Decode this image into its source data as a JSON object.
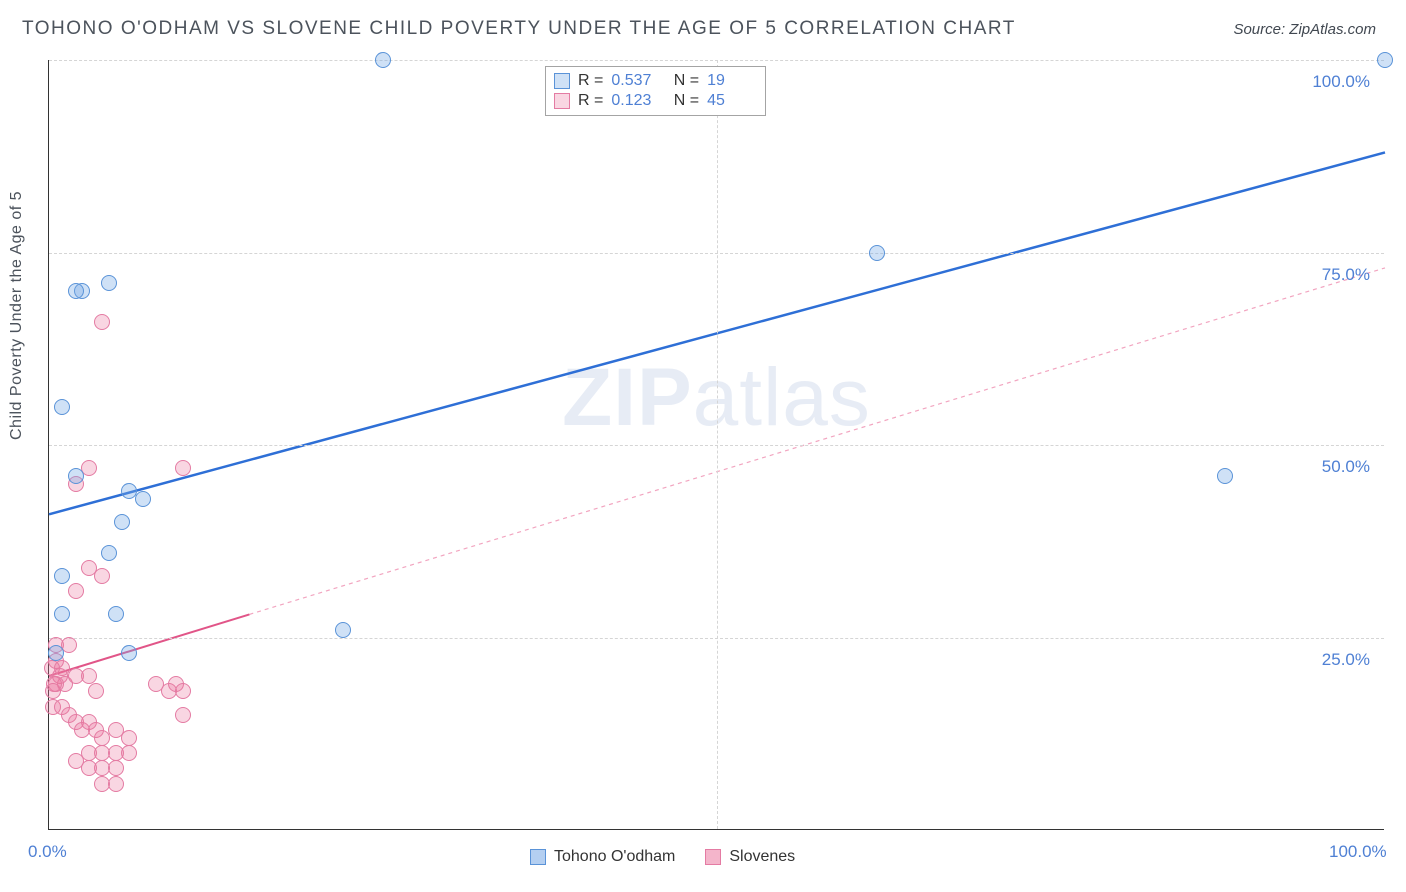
{
  "title": "TOHONO O'ODHAM VS SLOVENE CHILD POVERTY UNDER THE AGE OF 5 CORRELATION CHART",
  "source_label": "Source: ZipAtlas.com",
  "y_axis_title": "Child Poverty Under the Age of 5",
  "watermark_bold": "ZIP",
  "watermark_rest": "atlas",
  "chart": {
    "type": "scatter",
    "xlim": [
      0,
      100
    ],
    "ylim": [
      0,
      100
    ],
    "x_ticks": [
      0,
      50,
      100
    ],
    "y_ticks": [
      25,
      50,
      75,
      100
    ],
    "x_tick_labels": [
      "0.0%",
      "",
      "100.0%"
    ],
    "y_tick_labels": [
      "25.0%",
      "50.0%",
      "75.0%",
      "100.0%"
    ],
    "grid_color": "#d5d5d5",
    "background": "#ffffff",
    "point_radius": 8,
    "series": [
      {
        "name": "Tohono O'odham",
        "fill": "rgba(118,168,229,0.35)",
        "stroke": "#5a93d8",
        "r_value": "0.537",
        "n_value": "19",
        "trend": {
          "color": "#2e6fd6",
          "width": 2.5,
          "dash": "none",
          "x1": 0,
          "y1": 41,
          "x2": 100,
          "y2": 88
        },
        "points": [
          [
            25,
            100
          ],
          [
            100,
            100
          ],
          [
            4.5,
            71
          ],
          [
            2.5,
            70
          ],
          [
            2,
            70
          ],
          [
            62,
            75
          ],
          [
            1,
            55
          ],
          [
            2,
            46
          ],
          [
            6,
            44
          ],
          [
            7,
            43
          ],
          [
            88,
            46
          ],
          [
            5.5,
            40
          ],
          [
            4.5,
            36
          ],
          [
            1,
            33
          ],
          [
            1,
            28
          ],
          [
            5,
            28
          ],
          [
            0.5,
            23
          ],
          [
            6,
            23
          ],
          [
            22,
            26
          ]
        ]
      },
      {
        "name": "Slovenes",
        "fill": "rgba(235,120,160,0.30)",
        "stroke": "#e47ba3",
        "r_value": "0.123",
        "n_value": "45",
        "trend_solid": {
          "color": "#e15588",
          "width": 2,
          "x1": 0,
          "y1": 20,
          "x2": 15,
          "y2": 28
        },
        "trend_dash": {
          "color": "#f2a5c0",
          "width": 1.2,
          "dash": "4,4",
          "x1": 15,
          "y1": 28,
          "x2": 100,
          "y2": 73
        },
        "points": [
          [
            4,
            66
          ],
          [
            3,
            47
          ],
          [
            2,
            45
          ],
          [
            10,
            47
          ],
          [
            3,
            34
          ],
          [
            4,
            33
          ],
          [
            2,
            31
          ],
          [
            0.5,
            24
          ],
          [
            1.5,
            24
          ],
          [
            0.5,
            22
          ],
          [
            0.2,
            21
          ],
          [
            1,
            21
          ],
          [
            0.8,
            20
          ],
          [
            1.2,
            19
          ],
          [
            0.5,
            19
          ],
          [
            2,
            20
          ],
          [
            3,
            20
          ],
          [
            3.5,
            18
          ],
          [
            8,
            19
          ],
          [
            9,
            18
          ],
          [
            9.5,
            19
          ],
          [
            10,
            18
          ],
          [
            10,
            15
          ],
          [
            0.3,
            16
          ],
          [
            1,
            16
          ],
          [
            1.5,
            15
          ],
          [
            2,
            14
          ],
          [
            2.5,
            13
          ],
          [
            3,
            14
          ],
          [
            3.5,
            13
          ],
          [
            4,
            12
          ],
          [
            5,
            13
          ],
          [
            6,
            12
          ],
          [
            3,
            10
          ],
          [
            4,
            10
          ],
          [
            5,
            10
          ],
          [
            6,
            10
          ],
          [
            4,
            8
          ],
          [
            5,
            8
          ],
          [
            3,
            8
          ],
          [
            2,
            9
          ],
          [
            5,
            6
          ],
          [
            4,
            6
          ],
          [
            0.3,
            18
          ],
          [
            0.4,
            19
          ]
        ]
      }
    ]
  },
  "legend_series": [
    {
      "label": "Tohono O'odham",
      "swatch_fill": "rgba(118,168,229,0.55)",
      "swatch_border": "#5a93d8"
    },
    {
      "label": "Slovenes",
      "swatch_fill": "rgba(235,120,160,0.55)",
      "swatch_border": "#e47ba3"
    }
  ]
}
